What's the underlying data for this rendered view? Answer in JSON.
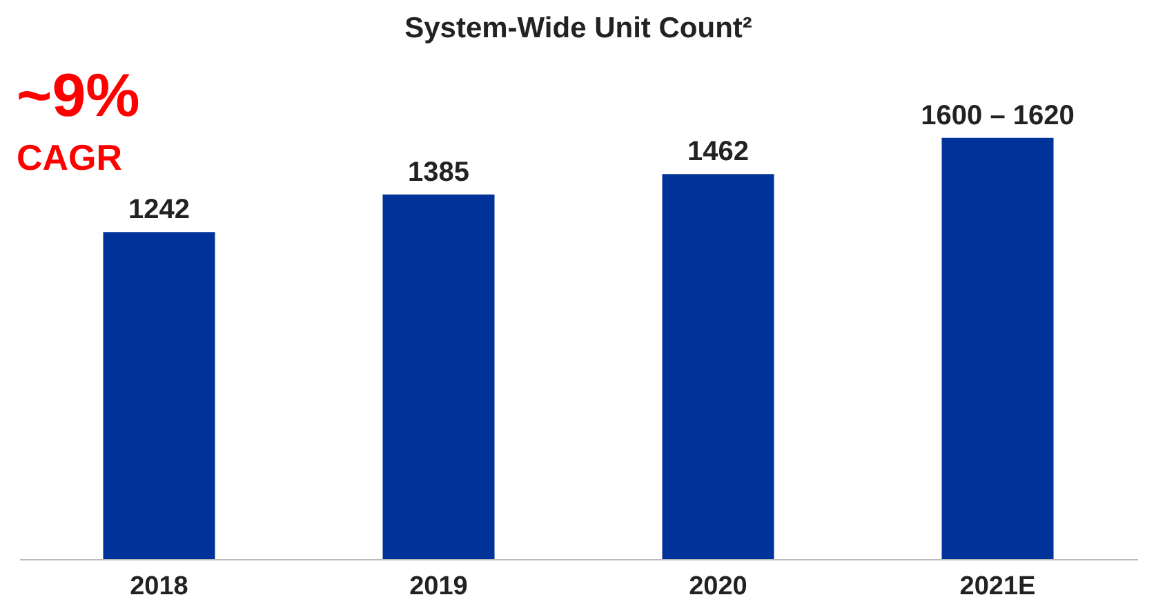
{
  "chart_data": {
    "type": "bar",
    "title": "System-Wide Unit Count²",
    "categories": [
      "2018",
      "2019",
      "2020",
      "2021E"
    ],
    "values": [
      1242,
      1385,
      1462,
      1600
    ],
    "value_labels": [
      "1242",
      "1385",
      "1462",
      "1600 – 1620"
    ],
    "color": "#003399",
    "annotations": [
      "~9%",
      "CAGR"
    ],
    "grid": false,
    "tick_labels": "x"
  }
}
